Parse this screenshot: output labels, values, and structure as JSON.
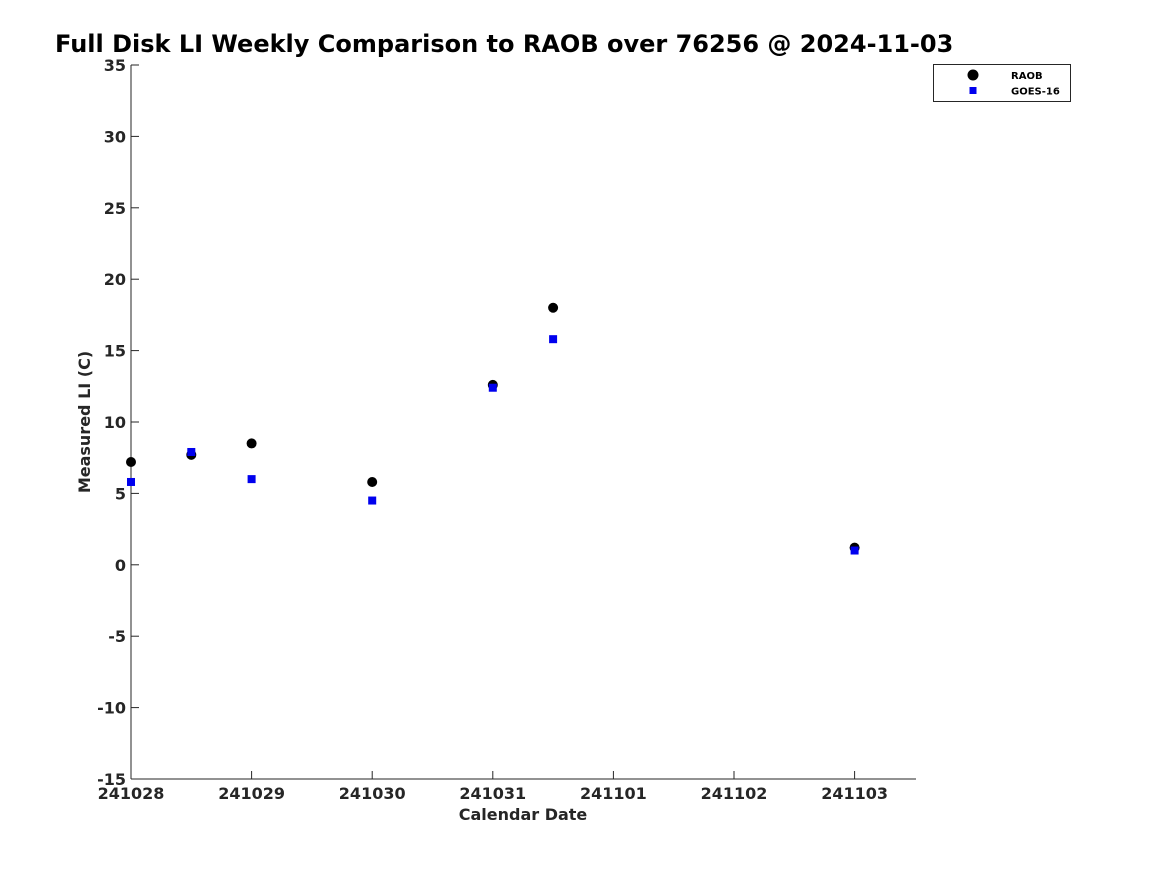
{
  "chart_data": {
    "type": "scatter",
    "title": "Full Disk LI Weekly Comparison to RAOB over 76256 @ 2024-11-03",
    "xlabel": "Calendar Date",
    "ylabel": "Measured LI (C)",
    "x_tick_labels": [
      "241028",
      "241029",
      "241030",
      "241031",
      "241101",
      "241102",
      "241103"
    ],
    "y_ticks": [
      -15,
      -10,
      -5,
      0,
      5,
      10,
      15,
      20,
      25,
      30,
      35
    ],
    "xlim": [
      "241028",
      "241103"
    ],
    "ylim": [
      -15,
      35
    ],
    "grid": false,
    "legend_position": "top-right",
    "series": [
      {
        "name": "RAOB",
        "marker": "circle",
        "color": "#000000",
        "points": [
          {
            "x": "241028 00Z",
            "y": 7.2
          },
          {
            "x": "241028 12Z",
            "y": 7.7
          },
          {
            "x": "241029 00Z",
            "y": 8.5
          },
          {
            "x": "241030 00Z",
            "y": 5.8
          },
          {
            "x": "241031 00Z",
            "y": 12.6
          },
          {
            "x": "241031 12Z",
            "y": 18.0
          },
          {
            "x": "241103 00Z",
            "y": 1.2
          }
        ]
      },
      {
        "name": "GOES-16",
        "marker": "square",
        "color": "#0000ee",
        "points": [
          {
            "x": "241028 00Z",
            "y": 5.8
          },
          {
            "x": "241028 12Z",
            "y": 7.9
          },
          {
            "x": "241029 00Z",
            "y": 6.0
          },
          {
            "x": "241030 00Z",
            "y": 4.5
          },
          {
            "x": "241031 00Z",
            "y": 12.4
          },
          {
            "x": "241031 12Z",
            "y": 15.8
          },
          {
            "x": "241103 00Z",
            "y": 1.0
          }
        ]
      }
    ]
  }
}
